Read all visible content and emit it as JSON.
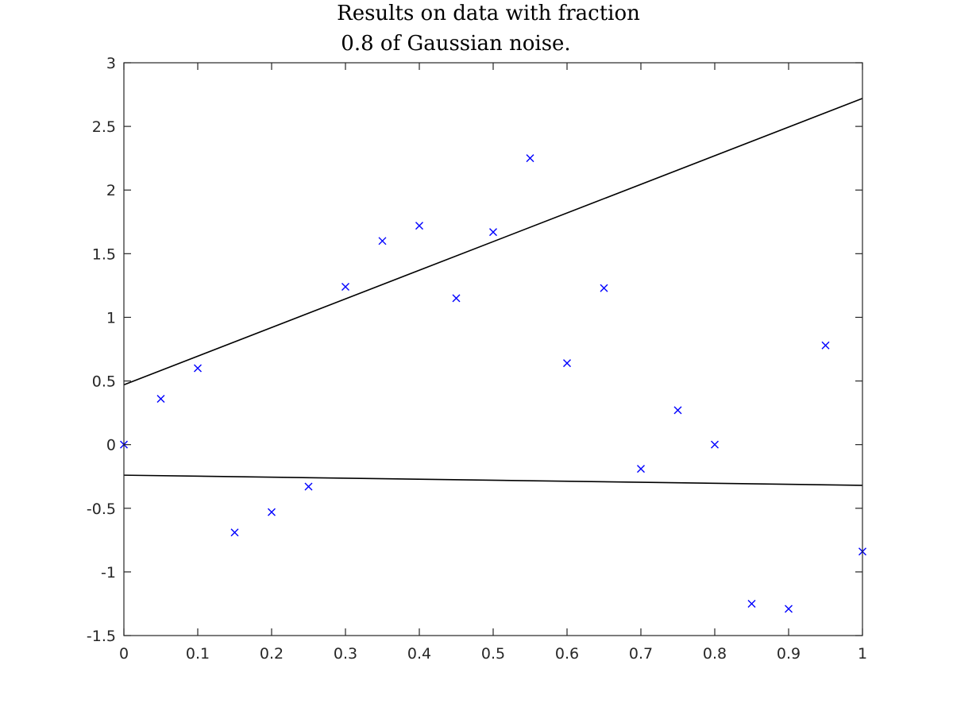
{
  "chart_data": {
    "type": "scatter",
    "title": [
      "Results on data with fraction",
      "0.8 of Gaussian noise."
    ],
    "xlim": [
      0,
      1
    ],
    "ylim": [
      -1.5,
      3
    ],
    "x_ticks": [
      "0",
      "0.1",
      "0.2",
      "0.3",
      "0.4",
      "0.5",
      "0.6",
      "0.7",
      "0.8",
      "0.9",
      "1"
    ],
    "x_tick_values": [
      0,
      0.1,
      0.2,
      0.3,
      0.4,
      0.5,
      0.6,
      0.7,
      0.8,
      0.9,
      1
    ],
    "y_ticks": [
      "-1.5",
      "-1",
      "-0.5",
      "0",
      "0.5",
      "1",
      "1.5",
      "2",
      "2.5",
      "3"
    ],
    "y_tick_values": [
      -1.5,
      -1,
      -0.5,
      0,
      0.5,
      1,
      1.5,
      2,
      2.5,
      3
    ],
    "grid": false,
    "series": [
      {
        "marker": "x",
        "color": "#0000ff",
        "x": [
          0,
          0.05,
          0.1,
          0.15,
          0.2,
          0.25,
          0.3,
          0.35,
          0.4,
          0.45,
          0.5,
          0.55,
          0.6,
          0.65,
          0.7,
          0.75,
          0.8,
          0.85,
          0.9,
          0.95,
          1
        ],
        "y": [
          0.0,
          0.36,
          0.6,
          -0.69,
          -0.53,
          -0.33,
          1.24,
          1.6,
          1.72,
          1.15,
          1.67,
          2.25,
          0.64,
          1.23,
          -0.19,
          0.27,
          0.0,
          -1.25,
          -1.29,
          0.78,
          -0.84
        ]
      }
    ],
    "lines": [
      {
        "color": "#000000",
        "x": [
          0,
          1
        ],
        "y": [
          0.47,
          2.72
        ]
      },
      {
        "color": "#000000",
        "x": [
          0,
          1
        ],
        "y": [
          -0.24,
          -0.32
        ]
      }
    ]
  }
}
